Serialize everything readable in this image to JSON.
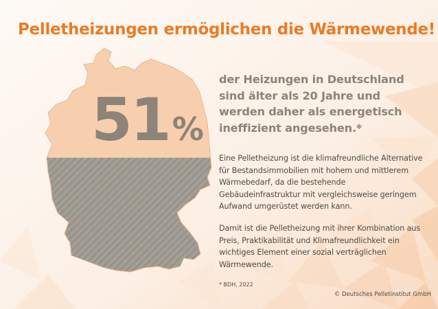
{
  "title": "Pelletheizungen ermöglichen die Wärmewende!",
  "stat": {
    "value": "51",
    "unit": "%"
  },
  "lead": "der Heizungen in Deutschland sind älter als 20 Jahre und werden daher als energetisch ineffizient angesehen.*",
  "paragraph_1": "Eine Pelletheizung ist die klimafreundliche Alternative für Bestandsimmobilien mit hohem und mittlerem Wärmebedarf, da die bestehende Gebäudeinfrastruktur mit vergleichsweise geringem Aufwand umgerüstet werden kann.",
  "paragraph_2": "Damit ist die Pelletheizung mit ihrer Kombination aus Preis, Praktikabilität und Klimafreundlichkeit ein wichtiges Element einer sozial verträglichen Wärmewende.",
  "footnote": "* BDH, 2022",
  "copyright": "© Deutsches Pelletinstitut GmbH",
  "map": {
    "filled_fraction": 0.51
  },
  "colors": {
    "title": "#ea7b24",
    "map_top": "#f8cfae",
    "map_bottom": "#a39e95",
    "hatch": "#8d877e",
    "stat": "#8c8478",
    "text": "#4e4a45",
    "background": "#fdf3ec"
  }
}
